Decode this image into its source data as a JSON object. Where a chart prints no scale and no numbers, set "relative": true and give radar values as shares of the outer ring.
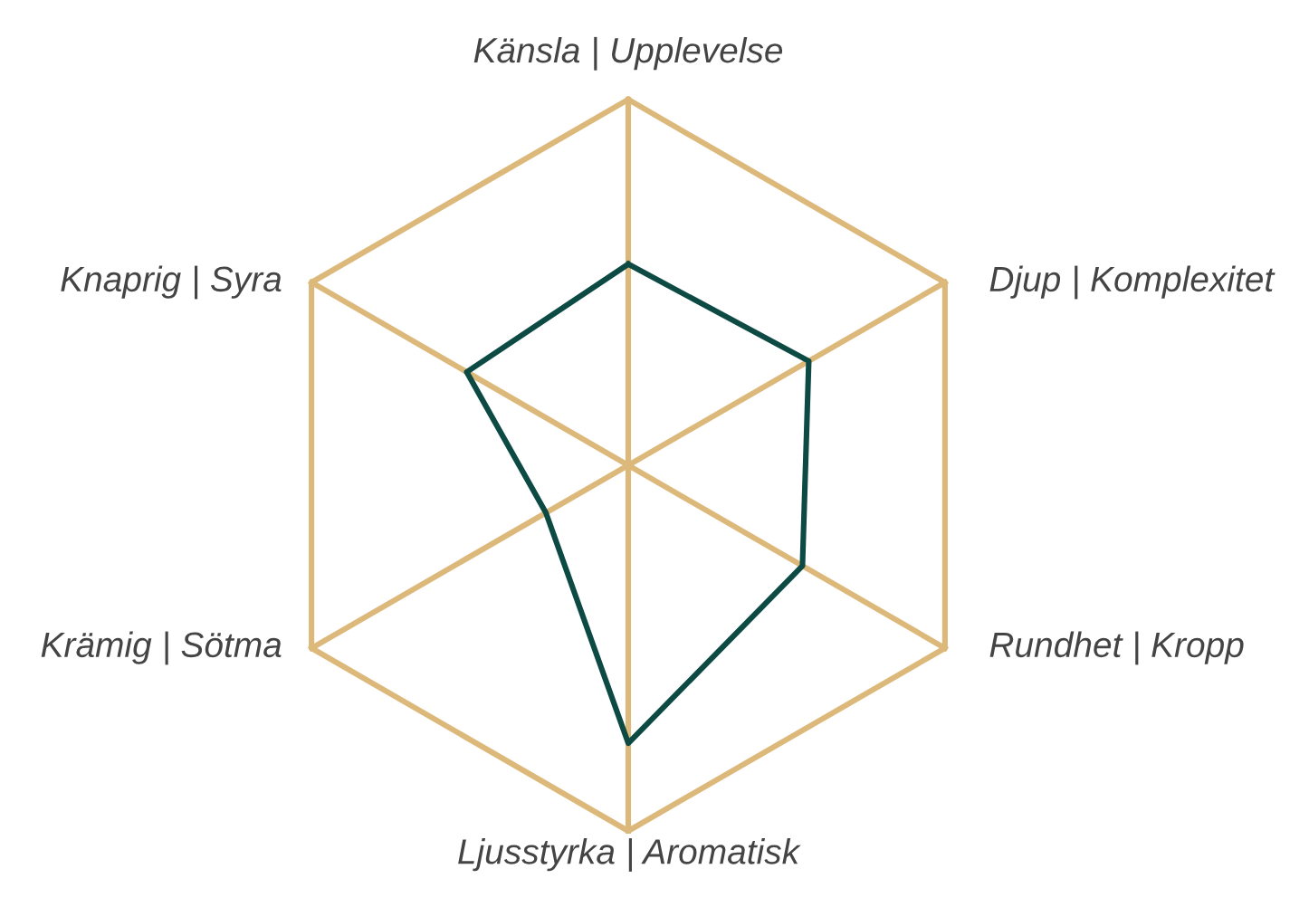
{
  "chart_data": {
    "type": "radar",
    "relative": true,
    "categories": [
      "Känsla | Upplevelse",
      "Djup | Komplexitet",
      "Rundhet | Kropp",
      "Ljusstyrka | Aromatisk",
      "Krämig | Sötma",
      "Knaprig | Syra"
    ],
    "series": [
      {
        "color": "#0d4a44",
        "values": [
          0.55,
          0.57,
          0.55,
          0.76,
          0.26,
          0.51
        ]
      }
    ]
  }
}
